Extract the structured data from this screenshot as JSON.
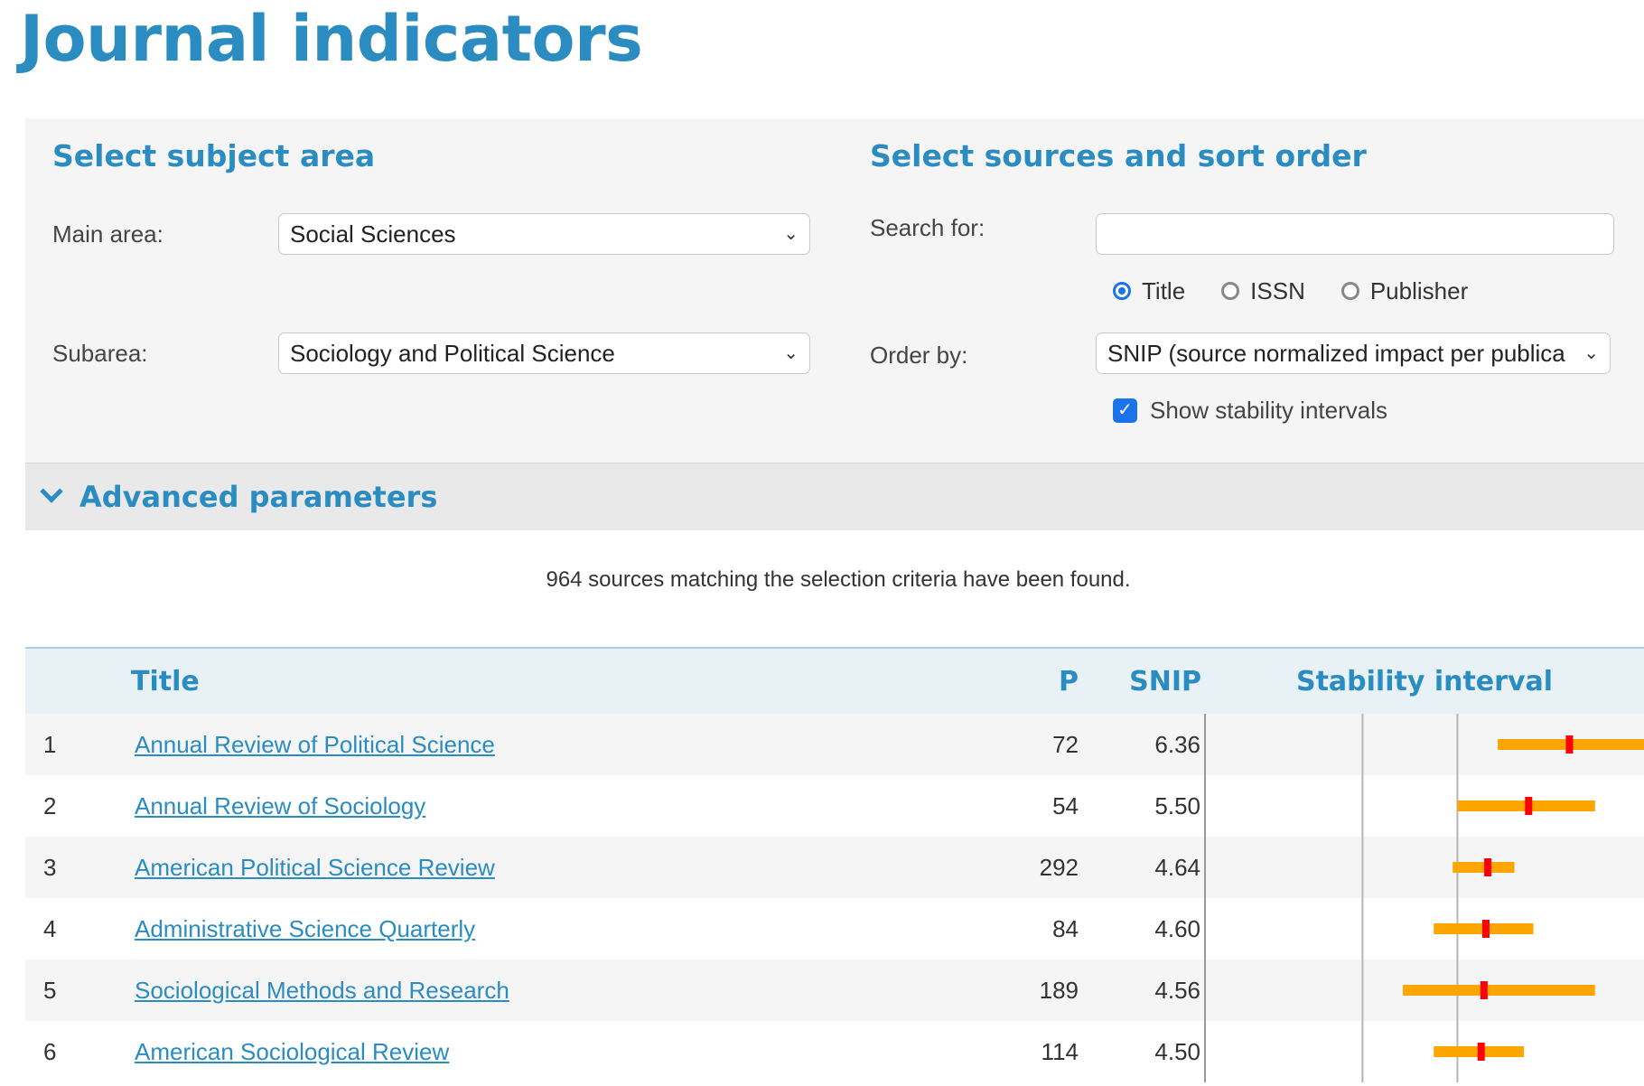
{
  "page": {
    "title": "Journal indicators"
  },
  "subject_area": {
    "heading": "Select subject area",
    "main_area_label": "Main area:",
    "main_area_value": "Social Sciences",
    "subarea_label": "Subarea:",
    "subarea_value": "Sociology and Political Science"
  },
  "sources": {
    "heading": "Select sources and sort order",
    "search_label": "Search for:",
    "search_value": "",
    "search_by": [
      {
        "label": "Title",
        "selected": true
      },
      {
        "label": "ISSN",
        "selected": false
      },
      {
        "label": "Publisher",
        "selected": false
      }
    ],
    "order_label": "Order by:",
    "order_value": "SNIP (source normalized impact per publica",
    "stability_label": "Show stability intervals",
    "stability_checked": true
  },
  "advanced": {
    "label": "Advanced parameters"
  },
  "result_count": "964 sources matching the selection criteria have been found.",
  "table": {
    "headers": {
      "title": "Title",
      "p": "P",
      "snip": "SNIP",
      "stability": "Stability interval"
    },
    "colors": {
      "interval": "#ffa500",
      "point": "#ff0000",
      "gridline": "#b5b5b5"
    },
    "rows": [
      {
        "rank": "1",
        "title": "Annual Review of Political Science",
        "p": "72",
        "snip": "6.36",
        "snip_value": 6.36,
        "lower": 4.85,
        "upper": 7.95
      },
      {
        "rank": "2",
        "title": "Annual Review of Sociology",
        "p": "54",
        "snip": "5.50",
        "snip_value": 5.5,
        "lower": 4.0,
        "upper": 6.9
      },
      {
        "rank": "3",
        "title": "American Political Science Review",
        "p": "292",
        "snip": "4.64",
        "snip_value": 4.64,
        "lower": 3.9,
        "upper": 5.2
      },
      {
        "rank": "4",
        "title": "Administrative Science Quarterly",
        "p": "84",
        "snip": "4.60",
        "snip_value": 4.6,
        "lower": 3.5,
        "upper": 5.6
      },
      {
        "rank": "5",
        "title": "Sociological Methods and Research",
        "p": "189",
        "snip": "4.56",
        "snip_value": 4.56,
        "lower": 2.85,
        "upper": 6.9
      },
      {
        "rank": "6",
        "title": "American Sociological Review",
        "p": "114",
        "snip": "4.50",
        "snip_value": 4.5,
        "lower": 3.5,
        "upper": 5.4
      }
    ]
  }
}
